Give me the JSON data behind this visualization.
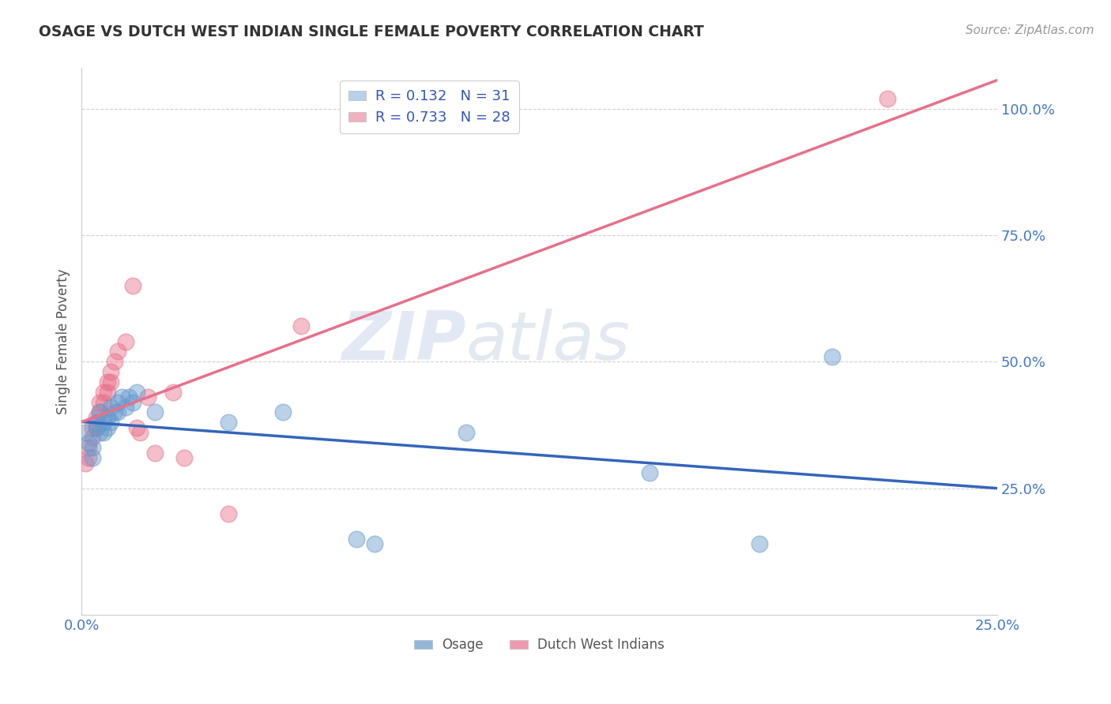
{
  "title": "OSAGE VS DUTCH WEST INDIAN SINGLE FEMALE POVERTY CORRELATION CHART",
  "source_text": "Source: ZipAtlas.com",
  "ylabel": "Single Female Poverty",
  "xlim": [
    0.0,
    0.25
  ],
  "ylim": [
    0.0,
    1.08
  ],
  "ytick_labels": [
    "25.0%",
    "50.0%",
    "75.0%",
    "100.0%"
  ],
  "ytick_values": [
    0.25,
    0.5,
    0.75,
    1.0
  ],
  "xtick_labels": [
    "0.0%",
    "25.0%"
  ],
  "xtick_values": [
    0.0,
    0.25
  ],
  "legend_entries": [
    {
      "label": "R = 0.132   N = 31",
      "color": "#b8d0e8"
    },
    {
      "label": "R = 0.733   N = 28",
      "color": "#f2b0be"
    }
  ],
  "watermark_zip": "ZIP",
  "watermark_atlas": "atlas",
  "osage_color": "#6699cc",
  "dutch_color": "#e8708a",
  "osage_label": "Osage",
  "dutch_label": "Dutch West Indians",
  "osage_line_color": "#3366bb",
  "dutch_line_color": "#e8708a",
  "osage_points": [
    [
      0.001,
      0.36
    ],
    [
      0.002,
      0.34
    ],
    [
      0.003,
      0.33
    ],
    [
      0.003,
      0.31
    ],
    [
      0.004,
      0.38
    ],
    [
      0.004,
      0.37
    ],
    [
      0.005,
      0.4
    ],
    [
      0.005,
      0.36
    ],
    [
      0.006,
      0.38
    ],
    [
      0.006,
      0.36
    ],
    [
      0.007,
      0.39
    ],
    [
      0.007,
      0.37
    ],
    [
      0.008,
      0.41
    ],
    [
      0.008,
      0.38
    ],
    [
      0.009,
      0.4
    ],
    [
      0.01,
      0.42
    ],
    [
      0.01,
      0.4
    ],
    [
      0.011,
      0.43
    ],
    [
      0.012,
      0.41
    ],
    [
      0.013,
      0.43
    ],
    [
      0.014,
      0.42
    ],
    [
      0.015,
      0.44
    ],
    [
      0.02,
      0.4
    ],
    [
      0.04,
      0.38
    ],
    [
      0.055,
      0.4
    ],
    [
      0.075,
      0.15
    ],
    [
      0.08,
      0.14
    ],
    [
      0.105,
      0.36
    ],
    [
      0.155,
      0.28
    ],
    [
      0.185,
      0.14
    ],
    [
      0.205,
      0.51
    ]
  ],
  "dutch_points": [
    [
      0.001,
      0.3
    ],
    [
      0.002,
      0.33
    ],
    [
      0.002,
      0.31
    ],
    [
      0.003,
      0.37
    ],
    [
      0.003,
      0.35
    ],
    [
      0.004,
      0.39
    ],
    [
      0.004,
      0.37
    ],
    [
      0.005,
      0.42
    ],
    [
      0.005,
      0.4
    ],
    [
      0.006,
      0.44
    ],
    [
      0.006,
      0.42
    ],
    [
      0.007,
      0.46
    ],
    [
      0.007,
      0.44
    ],
    [
      0.008,
      0.48
    ],
    [
      0.008,
      0.46
    ],
    [
      0.009,
      0.5
    ],
    [
      0.01,
      0.52
    ],
    [
      0.012,
      0.54
    ],
    [
      0.014,
      0.65
    ],
    [
      0.015,
      0.37
    ],
    [
      0.016,
      0.36
    ],
    [
      0.018,
      0.43
    ],
    [
      0.02,
      0.32
    ],
    [
      0.025,
      0.44
    ],
    [
      0.028,
      0.31
    ],
    [
      0.04,
      0.2
    ],
    [
      0.06,
      0.57
    ],
    [
      0.22,
      1.02
    ]
  ],
  "background_color": "#ffffff",
  "grid_color": "#cccccc",
  "title_color": "#333333",
  "axis_label_color": "#555555",
  "tick_label_color": "#4477cc"
}
